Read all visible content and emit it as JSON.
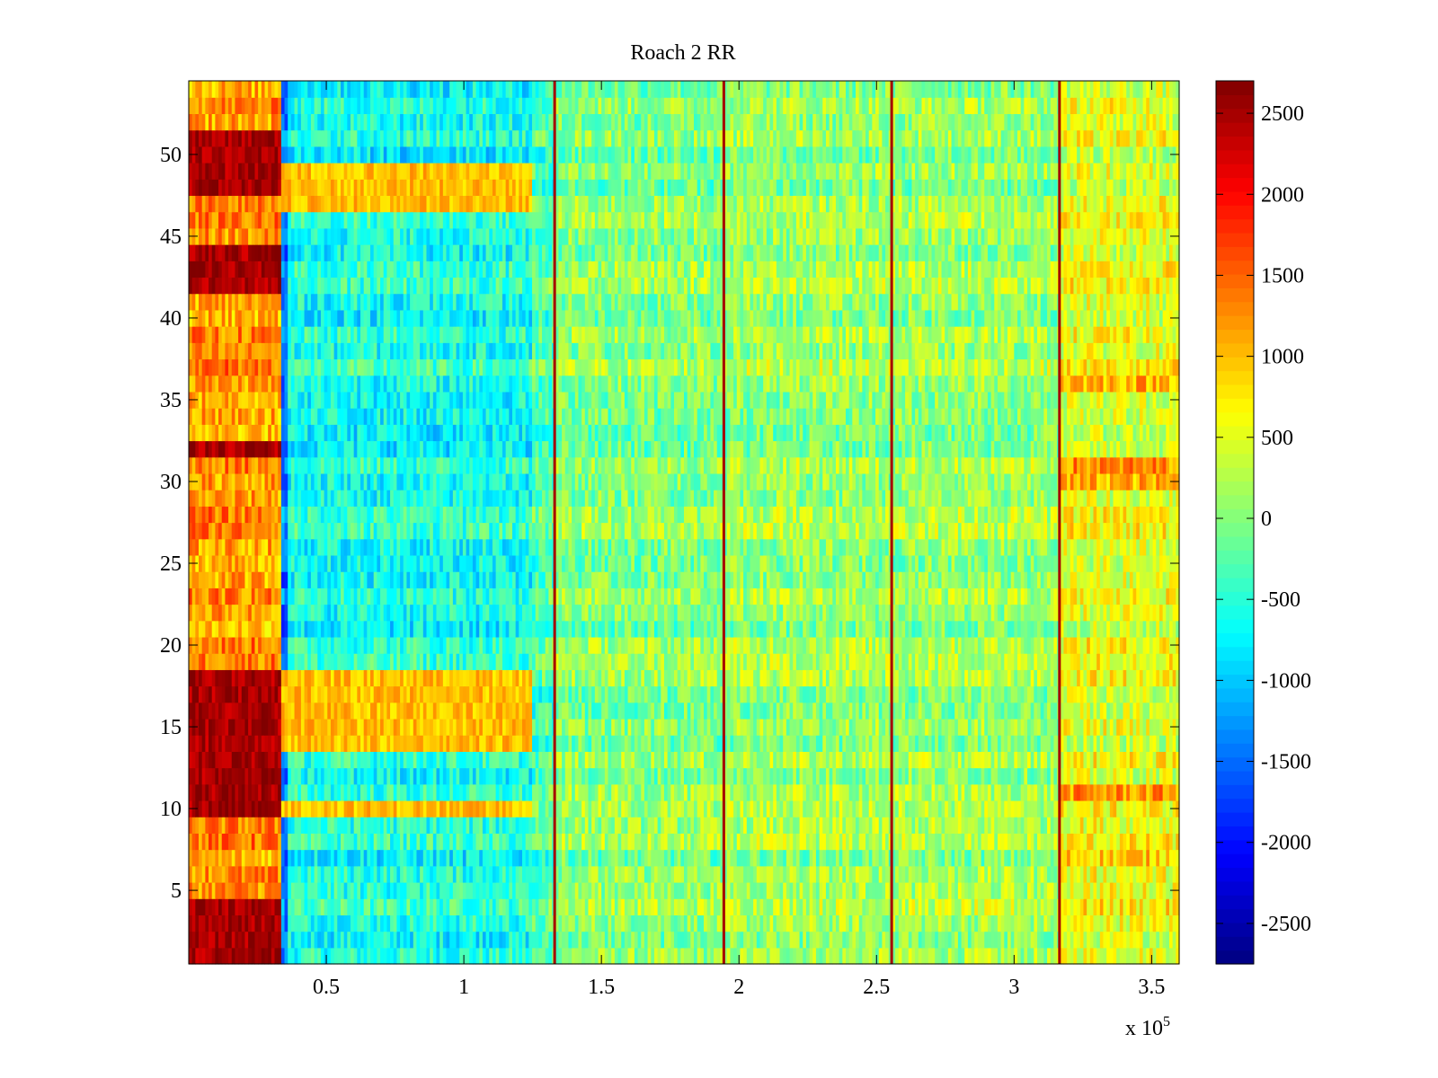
{
  "chart_data": {
    "type": "heatmap",
    "title": "Roach 2 RR",
    "xlabel": "",
    "ylabel": "",
    "x_ticks": [
      0.5,
      1,
      1.5,
      2,
      2.5,
      3,
      3.5
    ],
    "x_tick_labels": [
      "0.5",
      "1",
      "1.5",
      "2",
      "2.5",
      "3",
      "3.5"
    ],
    "x_multiplier_label": "x 10",
    "x_multiplier_exponent": "5",
    "xlim": [
      0,
      3.6
    ],
    "y_ticks": [
      5,
      10,
      15,
      20,
      25,
      30,
      35,
      40,
      45,
      50
    ],
    "y_tick_labels": [
      "5",
      "10",
      "15",
      "20",
      "25",
      "30",
      "35",
      "40",
      "45",
      "50"
    ],
    "ylim": [
      0.5,
      54.5
    ],
    "rows": 54,
    "colormap": "jet",
    "colorbar": {
      "ticks": [
        2500,
        2000,
        1500,
        1000,
        500,
        0,
        -500,
        -1000,
        -1500,
        -2000,
        -2500
      ],
      "tick_labels": [
        "2500",
        "2000",
        "1500",
        "1000",
        "500",
        "0",
        "-500",
        "-1000",
        "-1500",
        "-2000",
        "-2500"
      ],
      "range": [
        -2750,
        2700
      ]
    },
    "grid": false,
    "segments_x": [
      0,
      0.34,
      0.36,
      1.25,
      1.33,
      1.95,
      2.56,
      3.17,
      3.6
    ],
    "column_mean_values": [
      1200,
      -1500,
      -600,
      -300,
      0,
      100,
      100,
      500
    ],
    "row_band_values": {
      "hot_rows_x_0_to_0_34": [
        1,
        2,
        3,
        4,
        10,
        11,
        12,
        13,
        14,
        15,
        16,
        17,
        18,
        32,
        42,
        43,
        44,
        48,
        49,
        50,
        51
      ],
      "warm_rows_x_0_36_to_1_25": [
        10,
        14,
        15,
        16,
        17,
        18,
        47,
        48,
        49
      ]
    },
    "vertical_lines_x": [
      1.33,
      1.945,
      2.555,
      3.165
    ],
    "vertical_line_value": 2500
  }
}
